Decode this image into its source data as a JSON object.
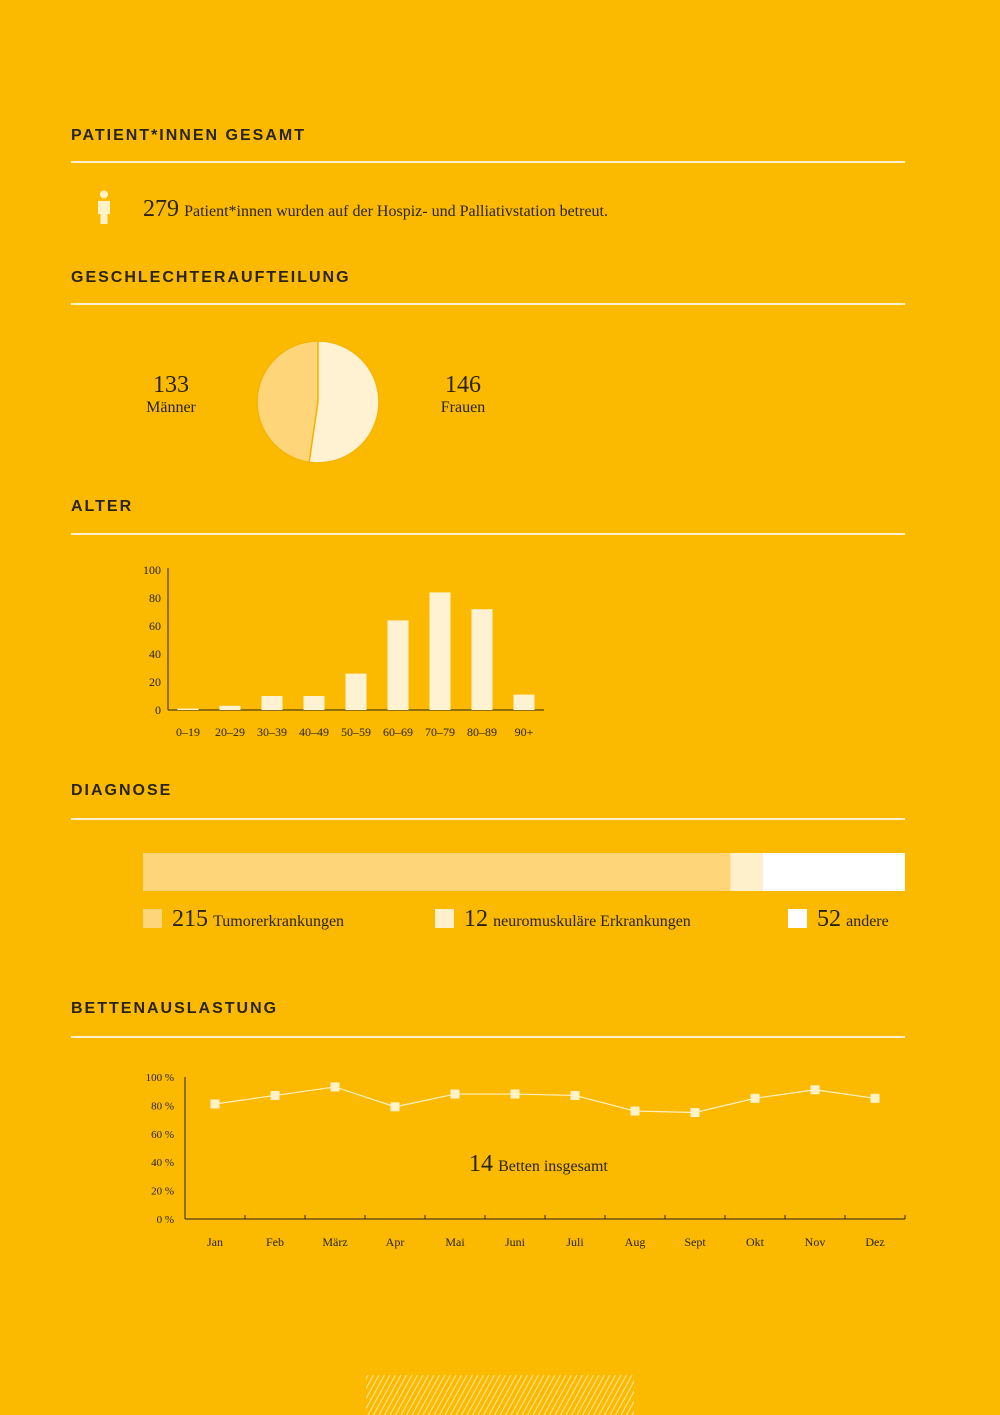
{
  "sections": {
    "patients": {
      "title": "PATIENT*INNEN GESAMT",
      "count": "279",
      "text": "Patient*innen wurden auf der Hospiz- und Palliativstation betreut."
    },
    "gender": {
      "title": "GESCHLECHTERAUFTEILUNG",
      "men_value": "133",
      "men_label": "Männer",
      "women_value": "146",
      "women_label": "Frauen"
    },
    "age": {
      "title": "ALTER"
    },
    "diagnosis": {
      "title": "DIAGNOSE",
      "items": [
        {
          "value": "215",
          "label": "Tumorerkrankungen"
        },
        {
          "value": "12",
          "label": "neuromuskuläre Erkrankungen"
        },
        {
          "value": "52",
          "label": "andere"
        }
      ]
    },
    "beds": {
      "title": "BETTENAUSLASTUNG",
      "beds_value": "14",
      "beds_label": "Betten insgesamt"
    }
  },
  "colors": {
    "background": "#FBBA00",
    "men": "#FFD57A",
    "women": "#FFF2D2",
    "bars": "#FFF2D2",
    "tumor": "#FFD57A",
    "neuro": "#FFF0CC",
    "other": "#FFFFFF",
    "line": "#FFF2C8"
  },
  "chart_data": [
    {
      "type": "pie",
      "labels": [
        "Männer",
        "Frauen"
      ],
      "values": [
        133,
        146
      ]
    },
    {
      "type": "bar",
      "categories": [
        "0–19",
        "20–29",
        "30–39",
        "40–49",
        "50–59",
        "60–69",
        "70–79",
        "80–89",
        "90+"
      ],
      "values": [
        1,
        3,
        10,
        10,
        26,
        64,
        84,
        72,
        11
      ],
      "ylim": [
        0,
        100
      ],
      "yticks": [
        0,
        20,
        40,
        60,
        80,
        100
      ]
    },
    {
      "type": "bar",
      "orientation": "horizontal-stacked",
      "categories": [
        "Tumorerkrankungen",
        "neuromuskuläre Erkrankungen",
        "andere"
      ],
      "values": [
        215,
        12,
        52
      ]
    },
    {
      "type": "line",
      "categories": [
        "Jan",
        "Feb",
        "März",
        "Apr",
        "Mai",
        "Juni",
        "Juli",
        "Aug",
        "Sept",
        "Okt",
        "Nov",
        "Dez"
      ],
      "values": [
        81,
        87,
        93,
        79,
        88,
        88,
        87,
        76,
        75,
        85,
        91,
        85
      ],
      "ylim": [
        0,
        100
      ],
      "yticks": [
        "0 %",
        "20 %",
        "40 %",
        "60 %",
        "80 %",
        "100 %"
      ]
    }
  ]
}
